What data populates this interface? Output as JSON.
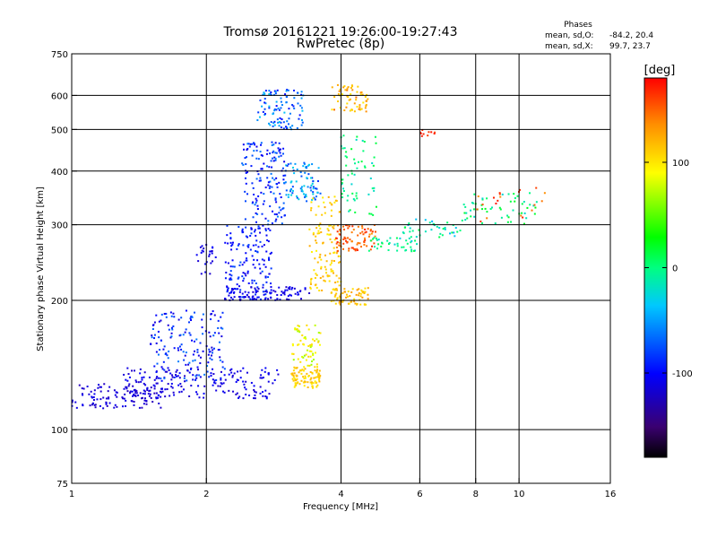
{
  "title": {
    "line1": "Tromsø 20161221 19:26:00-19:27:43",
    "line2": "RwPretec (8p)"
  },
  "stats": {
    "heading": "Phases",
    "o_label": "mean, sd,O:",
    "o_values": "-84.2, 20.4",
    "x_label": "mean, sd,X:",
    "x_values": "99.7, 23.7"
  },
  "colorbar": {
    "unit": "[deg]",
    "ticks": [
      {
        "label": "100",
        "value": 100
      },
      {
        "label": "0",
        "value": 0
      },
      {
        "label": "-100",
        "value": -100
      }
    ],
    "min": -180,
    "max": 180
  },
  "chart_data": {
    "type": "scatter",
    "xlabel": "Frequency [MHz]",
    "ylabel": "Stationary phase Virtual Height [km]",
    "xscale": "log",
    "yscale": "log",
    "xlim": [
      1,
      16
    ],
    "ylim": [
      75,
      750
    ],
    "x_ticks": [
      {
        "label": "1",
        "value": 1
      },
      {
        "label": "2",
        "value": 2
      },
      {
        "label": "4",
        "value": 4
      },
      {
        "label": "6",
        "value": 6
      },
      {
        "label": "8",
        "value": 8
      },
      {
        "label": "10",
        "value": 10
      },
      {
        "label": "16",
        "value": 16
      }
    ],
    "x_grid": [
      2,
      4,
      6,
      8,
      10
    ],
    "y_ticks": [
      {
        "label": "750",
        "value": 750
      },
      {
        "label": "600",
        "value": 600
      },
      {
        "label": "500",
        "value": 500
      },
      {
        "label": "400",
        "value": 400
      },
      {
        "label": "300",
        "value": 300
      },
      {
        "label": "200",
        "value": 200
      },
      {
        "label": "100",
        "value": 100
      },
      {
        "label": "75",
        "value": 75
      }
    ],
    "y_grid": [
      600,
      500,
      400,
      300,
      200,
      100
    ],
    "colormap": [
      "#000000",
      "#4b0082",
      "#0000ff",
      "#00bfff",
      "#00ff80",
      "#00ff00",
      "#ffff00",
      "#ffa500",
      "#ff0000"
    ],
    "clusters": [
      {
        "x": [
          1.0,
          1.6
        ],
        "y": [
          112,
          128
        ],
        "phase": [
          -115,
          -95
        ],
        "n": 120
      },
      {
        "x": [
          1.3,
          2.9
        ],
        "y": [
          118,
          140
        ],
        "phase": [
          -110,
          -90
        ],
        "n": 180
      },
      {
        "x": [
          1.5,
          2.2
        ],
        "y": [
          130,
          190
        ],
        "phase": [
          -105,
          -60
        ],
        "n": 160
      },
      {
        "x": [
          1.9,
          2.1
        ],
        "y": [
          230,
          270
        ],
        "phase": [
          -110,
          -90
        ],
        "n": 25
      },
      {
        "x": [
          2.2,
          2.8
        ],
        "y": [
          200,
          300
        ],
        "phase": [
          -100,
          -70
        ],
        "n": 160
      },
      {
        "x": [
          2.2,
          3.4
        ],
        "y": [
          200,
          215
        ],
        "phase": [
          -110,
          -90
        ],
        "n": 90
      },
      {
        "x": [
          2.4,
          3.0
        ],
        "y": [
          300,
          470
        ],
        "phase": [
          -100,
          -60
        ],
        "n": 150
      },
      {
        "x": [
          2.6,
          3.3
        ],
        "y": [
          500,
          620
        ],
        "phase": [
          -90,
          -40
        ],
        "n": 100
      },
      {
        "x": [
          3.0,
          3.6
        ],
        "y": [
          340,
          420
        ],
        "phase": [
          -80,
          -30
        ],
        "n": 80
      },
      {
        "x": [
          3.1,
          3.6
        ],
        "y": [
          125,
          140
        ],
        "phase": [
          95,
          130
        ],
        "n": 90
      },
      {
        "x": [
          3.1,
          3.6
        ],
        "y": [
          140,
          175
        ],
        "phase": [
          70,
          115
        ],
        "n": 60
      },
      {
        "x": [
          3.4,
          4.0
        ],
        "y": [
          210,
          350
        ],
        "phase": [
          95,
          135
        ],
        "n": 120
      },
      {
        "x": [
          3.8,
          4.6
        ],
        "y": [
          195,
          215
        ],
        "phase": [
          100,
          140
        ],
        "n": 70
      },
      {
        "x": [
          3.9,
          4.8
        ],
        "y": [
          260,
          300
        ],
        "phase": [
          140,
          175
        ],
        "n": 80
      },
      {
        "x": [
          3.8,
          4.6
        ],
        "y": [
          550,
          640
        ],
        "phase": [
          95,
          150
        ],
        "n": 60
      },
      {
        "x": [
          4.0,
          4.8
        ],
        "y": [
          310,
          490
        ],
        "phase": [
          -30,
          30
        ],
        "n": 60
      },
      {
        "x": [
          4.6,
          6.0
        ],
        "y": [
          260,
          280
        ],
        "phase": [
          -40,
          20
        ],
        "n": 40
      },
      {
        "x": [
          5.5,
          7.5
        ],
        "y": [
          280,
          310
        ],
        "phase": [
          -50,
          20
        ],
        "n": 40
      },
      {
        "x": [
          7.5,
          11.0
        ],
        "y": [
          300,
          360
        ],
        "phase": [
          -30,
          40
        ],
        "n": 55
      },
      {
        "x": [
          6.0,
          6.5
        ],
        "y": [
          480,
          500
        ],
        "phase": [
          160,
          175
        ],
        "n": 10
      },
      {
        "x": [
          8.0,
          11.5
        ],
        "y": [
          300,
          370
        ],
        "phase": [
          140,
          175
        ],
        "n": 20
      }
    ]
  }
}
